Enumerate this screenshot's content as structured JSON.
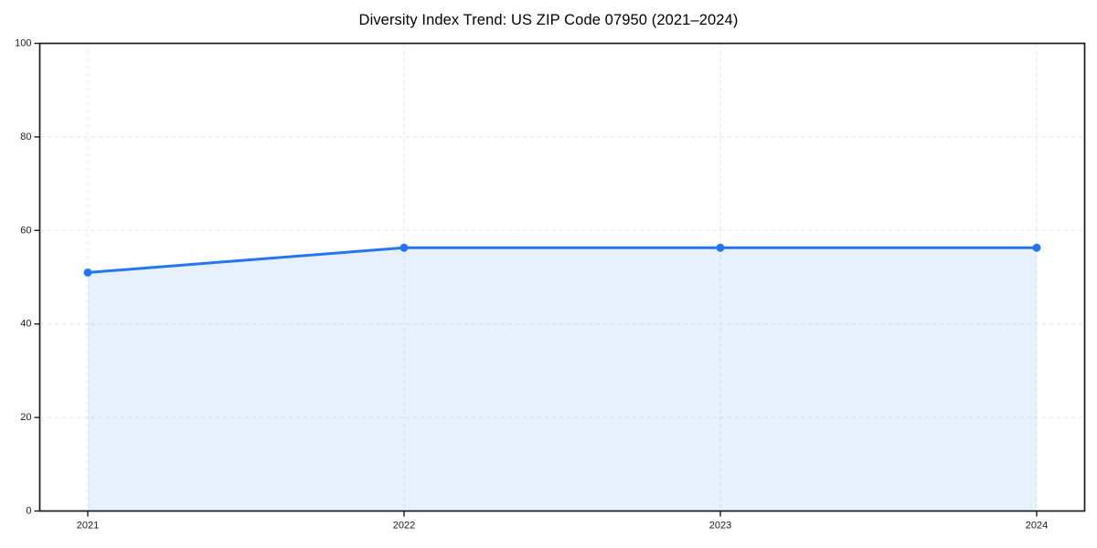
{
  "chart_data": {
    "type": "area",
    "title": "Diversity Index Trend: US ZIP Code 07950 (2021–2024)",
    "categories": [
      "2021",
      "2022",
      "2023",
      "2024"
    ],
    "series": [
      {
        "name": "Diversity Index",
        "values": [
          51,
          56.3,
          56.3,
          56.3
        ]
      }
    ],
    "xlabel": "",
    "ylabel": "",
    "ylim": [
      0,
      100
    ],
    "y_ticks": [
      0,
      20,
      40,
      60,
      80,
      100
    ],
    "grid": true,
    "grid_style": "dashed",
    "legend": "none",
    "marker": "circle",
    "colors": {
      "line": "#2575f0",
      "marker": "#2575f0",
      "area_fill": "#2575f0",
      "area_fill_rendered": "#e8f0fd",
      "grid": "#e3e3e3",
      "axis": "#1a1a1a",
      "tick_label": "#1a1a1a",
      "title": "#000000",
      "background": "#ffffff"
    }
  }
}
